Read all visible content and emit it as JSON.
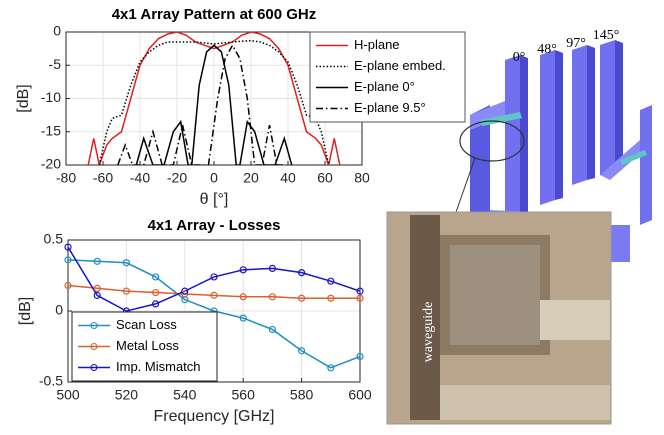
{
  "chart_data": [
    {
      "type": "line",
      "title": "4x1 Array Pattern at 600 GHz",
      "x_label": "θ [°]",
      "y_label": "[dB]",
      "xlim": [
        -80,
        80
      ],
      "xticks": [
        -80,
        -60,
        -40,
        -20,
        0,
        20,
        40,
        60,
        80
      ],
      "ylim": [
        -20,
        0
      ],
      "yticks": [
        0,
        -5,
        -10,
        -15,
        -20
      ],
      "grid": true,
      "legend": "upper right",
      "series": [
        {
          "name": "H-plane",
          "color": "#e02020",
          "dash": "solid",
          "x": [
            -68,
            -65,
            -62,
            -58,
            -55,
            -50,
            -45,
            -40,
            -35,
            -30,
            -25,
            -20,
            -15,
            -10,
            -5,
            0,
            5,
            10,
            15,
            20,
            25,
            30,
            35,
            40,
            45,
            50,
            55,
            58,
            62,
            65,
            68
          ],
          "values": [
            -20,
            -16,
            -20,
            -17,
            -16,
            -15,
            -10,
            -5,
            -2.5,
            -1,
            -0.3,
            0,
            -0.5,
            -1.5,
            -2,
            -2.5,
            -2,
            -1.5,
            -0.5,
            0,
            -0.3,
            -1,
            -2.5,
            -5,
            -10,
            -15,
            -16,
            -17,
            -20,
            -16,
            -20
          ]
        },
        {
          "name": "E-plane embed.",
          "color": "#000000",
          "dash": "dotted",
          "x": [
            -62,
            -58,
            -55,
            -50,
            -45,
            -40,
            -35,
            -30,
            -25,
            -20,
            -10,
            0,
            10,
            20,
            25,
            30,
            35,
            40,
            45,
            50,
            55,
            58,
            62
          ],
          "values": [
            -20,
            -15,
            -13,
            -12.5,
            -8,
            -4.5,
            -3,
            -2,
            -1.5,
            -1.5,
            -1.5,
            -1.8,
            -1.5,
            -1.3,
            -1.5,
            -2,
            -3,
            -4.5,
            -8,
            -12.5,
            -13,
            -15,
            -20
          ]
        },
        {
          "name": "E-plane 0°",
          "color": "#000000",
          "dash": "solid",
          "x": [
            -42,
            -38,
            -33,
            -27,
            -22,
            -18,
            -14,
            -12,
            -8,
            -4,
            0,
            4,
            8,
            12,
            14,
            18,
            22,
            27,
            33,
            38,
            42
          ],
          "values": [
            -20,
            -16,
            -20,
            -20,
            -15,
            -13.5,
            -20,
            -20,
            -8,
            -3,
            -2,
            -3,
            -8,
            -20,
            -20,
            -13.5,
            -15,
            -20,
            -20,
            -16,
            -20
          ]
        },
        {
          "name": "E-plane 9.5°",
          "color": "#000000",
          "dash": "dashdot",
          "x": [
            -52,
            -48,
            -44,
            -38,
            -33,
            -28,
            -22,
            -17,
            -12,
            -3,
            2,
            6,
            10,
            14,
            18,
            22,
            26,
            30,
            34,
            38
          ],
          "values": [
            -20,
            -17,
            -20,
            -20,
            -15,
            -20,
            -20,
            -14,
            -20,
            -20,
            -10,
            -4,
            -2,
            -4,
            -10,
            -20,
            -20,
            -14,
            -20,
            -20
          ]
        }
      ]
    },
    {
      "type": "line",
      "title": "4x1 Array - Losses",
      "x_label": "Frequency [GHz]",
      "y_label": "[dB]",
      "xlim": [
        500,
        600
      ],
      "xticks": [
        500,
        520,
        540,
        560,
        580,
        600
      ],
      "ylim": [
        -0.5,
        0.5
      ],
      "yticks": [
        -0.5,
        0,
        0.5
      ],
      "grid": true,
      "legend": "lower left",
      "marker": "circle",
      "x": [
        500,
        510,
        520,
        530,
        540,
        550,
        560,
        570,
        580,
        590,
        600
      ],
      "series": [
        {
          "name": "Scan Loss",
          "color": "#1f8fc0",
          "dash": "solid",
          "values": [
            0.36,
            0.35,
            0.34,
            0.24,
            0.08,
            0.0,
            -0.05,
            -0.13,
            -0.28,
            -0.4,
            -0.32
          ]
        },
        {
          "name": "Metal Loss",
          "color": "#d9622b",
          "dash": "solid",
          "values": [
            0.18,
            0.16,
            0.14,
            0.13,
            0.12,
            0.11,
            0.1,
            0.1,
            0.09,
            0.09,
            0.09
          ]
        },
        {
          "name": "Imp. Mismatch",
          "color": "#1414cc",
          "dash": "solid",
          "values": [
            0.45,
            0.11,
            0.0,
            0.05,
            0.14,
            0.24,
            0.29,
            0.3,
            0.27,
            0.21,
            0.14
          ]
        }
      ]
    }
  ],
  "figure_labels": {
    "angles": [
      "0°",
      "48°",
      "97°",
      "145°"
    ],
    "photo_label": "waveguide"
  }
}
